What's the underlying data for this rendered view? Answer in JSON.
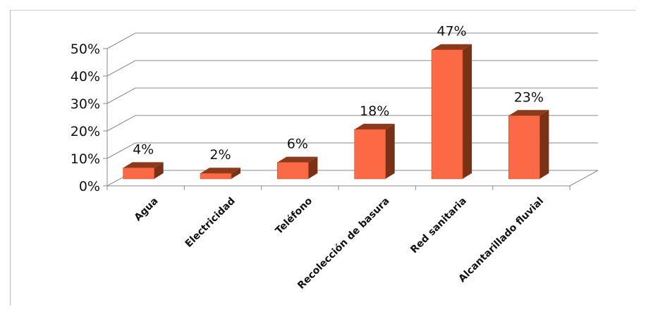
{
  "chart_data": {
    "type": "bar",
    "three_d": true,
    "categories": [
      "Agua",
      "Electricidad",
      "Teléfono",
      "Recolección de basura",
      "Red sanitaria",
      "Alcantarillado fluvial"
    ],
    "values": [
      4,
      2,
      6,
      18,
      47,
      23
    ],
    "data_labels": [
      "4%",
      "2%",
      "6%",
      "18%",
      "47%",
      "23%"
    ],
    "y_ticks": [
      "0%",
      "10%",
      "20%",
      "30%",
      "40%",
      "50%"
    ],
    "ylim": [
      0,
      50
    ],
    "grid": true,
    "legend": "none",
    "colors": {
      "front": "#fb6a45",
      "side": "#7a3216",
      "top": "#8c3a1c",
      "grid": "#8a8a8a"
    }
  }
}
